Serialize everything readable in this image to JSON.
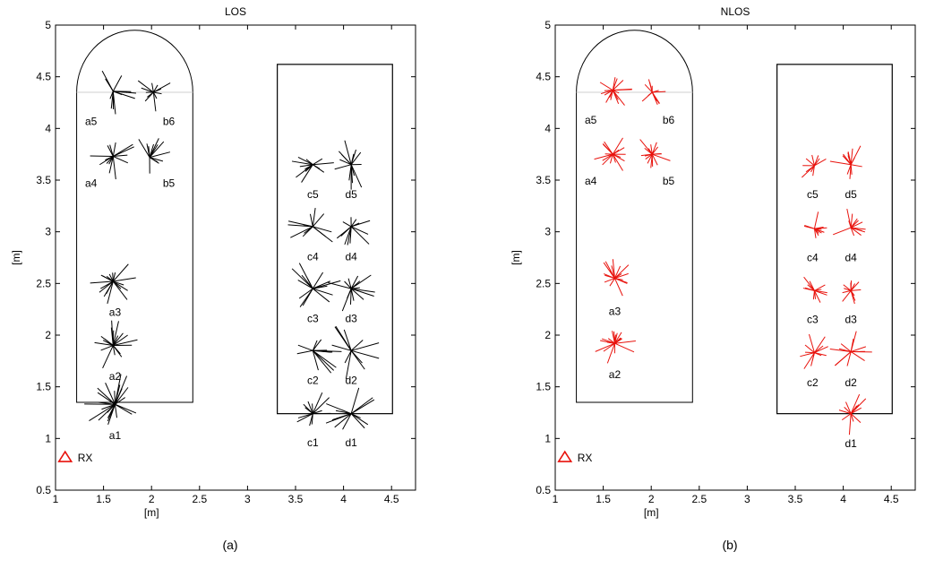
{
  "chart_data": [
    {
      "type": "scatter",
      "title": "LOS",
      "xlabel": "[m]",
      "ylabel": "[m]",
      "xlim": [
        1,
        4.75
      ],
      "ylim": [
        0.5,
        5
      ],
      "xticks": [
        "1",
        "1.5",
        "2",
        "2.5",
        "3",
        "3.5",
        "4",
        "4.5"
      ],
      "yticks": [
        "0.5",
        "1",
        "1.5",
        "2",
        "2.5",
        "3",
        "3.5",
        "4",
        "4.5",
        "5"
      ],
      "caption": "(a)",
      "ray_color": "#000000",
      "receiver": {
        "label": "RX",
        "x": 1.1,
        "y": 0.82,
        "color": "#e8120c"
      },
      "room_outline": {
        "left": 1.22,
        "right": 2.43,
        "bottom": 1.35,
        "top": 4.35
      },
      "dome_top": 4.95,
      "dome_baseline_color": "#cfcfcf",
      "room_box": {
        "left": 3.31,
        "right": 4.51,
        "bottom": 1.24,
        "top": 4.62
      },
      "positions": [
        {
          "label": "a1",
          "x": 1.62,
          "y": 1.33,
          "lx": 1.62,
          "ly": 1.03,
          "rays": 22,
          "len": 0.32,
          "seed": 11
        },
        {
          "label": "a2",
          "x": 1.6,
          "y": 1.9,
          "lx": 1.62,
          "ly": 1.6,
          "rays": 18,
          "len": 0.26,
          "seed": 12
        },
        {
          "label": "a3",
          "x": 1.6,
          "y": 2.52,
          "lx": 1.62,
          "ly": 2.22,
          "rays": 18,
          "len": 0.24,
          "seed": 13
        },
        {
          "label": "a4",
          "x": 1.6,
          "y": 3.73,
          "lx": 1.37,
          "ly": 3.47,
          "rays": 14,
          "len": 0.24,
          "seed": 14
        },
        {
          "label": "a5",
          "x": 1.6,
          "y": 4.36,
          "lx": 1.37,
          "ly": 4.07,
          "rays": 14,
          "len": 0.24,
          "seed": 15
        },
        {
          "label": "b5",
          "x": 1.98,
          "y": 3.72,
          "lx": 2.18,
          "ly": 3.47,
          "rays": 12,
          "len": 0.22,
          "seed": 16
        },
        {
          "label": "b6",
          "x": 2.02,
          "y": 4.35,
          "lx": 2.18,
          "ly": 4.07,
          "rays": 12,
          "len": 0.2,
          "seed": 17
        },
        {
          "label": "c1",
          "x": 3.68,
          "y": 1.24,
          "lx": 3.68,
          "ly": 0.96,
          "rays": 12,
          "len": 0.24,
          "seed": 21
        },
        {
          "label": "c2",
          "x": 3.68,
          "y": 1.85,
          "lx": 3.68,
          "ly": 1.56,
          "rays": 12,
          "len": 0.3,
          "seed": 22
        },
        {
          "label": "c3",
          "x": 3.68,
          "y": 2.45,
          "lx": 3.68,
          "ly": 2.16,
          "rays": 14,
          "len": 0.3,
          "seed": 23
        },
        {
          "label": "c4",
          "x": 3.68,
          "y": 3.05,
          "lx": 3.68,
          "ly": 2.76,
          "rays": 12,
          "len": 0.26,
          "seed": 24
        },
        {
          "label": "c5",
          "x": 3.68,
          "y": 3.65,
          "lx": 3.68,
          "ly": 3.36,
          "rays": 12,
          "len": 0.22,
          "seed": 25
        },
        {
          "label": "d1",
          "x": 4.08,
          "y": 1.24,
          "lx": 4.08,
          "ly": 0.96,
          "rays": 12,
          "len": 0.28,
          "seed": 26
        },
        {
          "label": "d2",
          "x": 4.08,
          "y": 1.85,
          "lx": 4.08,
          "ly": 1.56,
          "rays": 12,
          "len": 0.3,
          "seed": 27
        },
        {
          "label": "d3",
          "x": 4.08,
          "y": 2.45,
          "lx": 4.08,
          "ly": 2.16,
          "rays": 14,
          "len": 0.25,
          "seed": 28
        },
        {
          "label": "d4",
          "x": 4.08,
          "y": 3.05,
          "lx": 4.08,
          "ly": 2.76,
          "rays": 12,
          "len": 0.26,
          "seed": 29
        },
        {
          "label": "d5",
          "x": 4.08,
          "y": 3.65,
          "lx": 4.08,
          "ly": 3.36,
          "rays": 14,
          "len": 0.26,
          "seed": 30
        }
      ]
    },
    {
      "type": "scatter",
      "title": "NLOS",
      "xlabel": "[m]",
      "ylabel": "[m]",
      "xlim": [
        1,
        4.75
      ],
      "ylim": [
        0.5,
        5
      ],
      "xticks": [
        "1",
        "1.5",
        "2",
        "2.5",
        "3",
        "3.5",
        "4",
        "4.5"
      ],
      "yticks": [
        "0.5",
        "1",
        "1.5",
        "2",
        "2.5",
        "3",
        "3.5",
        "4",
        "4.5",
        "5"
      ],
      "caption": "(b)",
      "ray_color": "#e8120c",
      "receiver": {
        "label": "RX",
        "x": 1.1,
        "y": 0.82,
        "color": "#e8120c"
      },
      "room_outline": {
        "left": 1.22,
        "right": 2.43,
        "bottom": 1.35,
        "top": 4.35
      },
      "dome_top": 4.95,
      "dome_baseline_color": "#cfcfcf",
      "room_box": {
        "left": 3.31,
        "right": 4.51,
        "bottom": 1.24,
        "top": 4.62
      },
      "positions": [
        {
          "label": "a2",
          "x": 1.62,
          "y": 1.92,
          "lx": 1.62,
          "ly": 1.62,
          "rays": 18,
          "len": 0.22,
          "seed": 41
        },
        {
          "label": "a3",
          "x": 1.62,
          "y": 2.55,
          "lx": 1.62,
          "ly": 2.23,
          "rays": 18,
          "len": 0.2,
          "seed": 42
        },
        {
          "label": "a4",
          "x": 1.6,
          "y": 3.75,
          "lx": 1.37,
          "ly": 3.49,
          "rays": 16,
          "len": 0.2,
          "seed": 43
        },
        {
          "label": "a5",
          "x": 1.6,
          "y": 4.37,
          "lx": 1.37,
          "ly": 4.08,
          "rays": 16,
          "len": 0.2,
          "seed": 44
        },
        {
          "label": "b5",
          "x": 2.01,
          "y": 3.75,
          "lx": 2.18,
          "ly": 3.49,
          "rays": 16,
          "len": 0.2,
          "seed": 45
        },
        {
          "label": "b6",
          "x": 2.01,
          "y": 4.35,
          "lx": 2.18,
          "ly": 4.08,
          "rays": 12,
          "len": 0.14,
          "seed": 46
        },
        {
          "label": "c2",
          "x": 3.7,
          "y": 1.83,
          "lx": 3.68,
          "ly": 1.54,
          "rays": 12,
          "len": 0.2,
          "seed": 51
        },
        {
          "label": "c3",
          "x": 3.7,
          "y": 2.43,
          "lx": 3.68,
          "ly": 2.15,
          "rays": 12,
          "len": 0.18,
          "seed": 52
        },
        {
          "label": "c4",
          "x": 3.7,
          "y": 3.03,
          "lx": 3.68,
          "ly": 2.75,
          "rays": 12,
          "len": 0.18,
          "seed": 53
        },
        {
          "label": "c5",
          "x": 3.7,
          "y": 3.64,
          "lx": 3.68,
          "ly": 3.36,
          "rays": 10,
          "len": 0.18,
          "seed": 54
        },
        {
          "label": "d1",
          "x": 4.08,
          "y": 1.24,
          "lx": 4.08,
          "ly": 0.95,
          "rays": 12,
          "len": 0.22,
          "seed": 55
        },
        {
          "label": "d2",
          "x": 4.08,
          "y": 1.84,
          "lx": 4.08,
          "ly": 1.54,
          "rays": 12,
          "len": 0.22,
          "seed": 56
        },
        {
          "label": "d3",
          "x": 4.08,
          "y": 2.43,
          "lx": 4.08,
          "ly": 2.15,
          "rays": 12,
          "len": 0.18,
          "seed": 57
        },
        {
          "label": "d4",
          "x": 4.08,
          "y": 3.04,
          "lx": 4.08,
          "ly": 2.75,
          "rays": 12,
          "len": 0.2,
          "seed": 58
        },
        {
          "label": "d5",
          "x": 4.08,
          "y": 3.65,
          "lx": 4.08,
          "ly": 3.36,
          "rays": 14,
          "len": 0.22,
          "seed": 59
        }
      ]
    }
  ]
}
